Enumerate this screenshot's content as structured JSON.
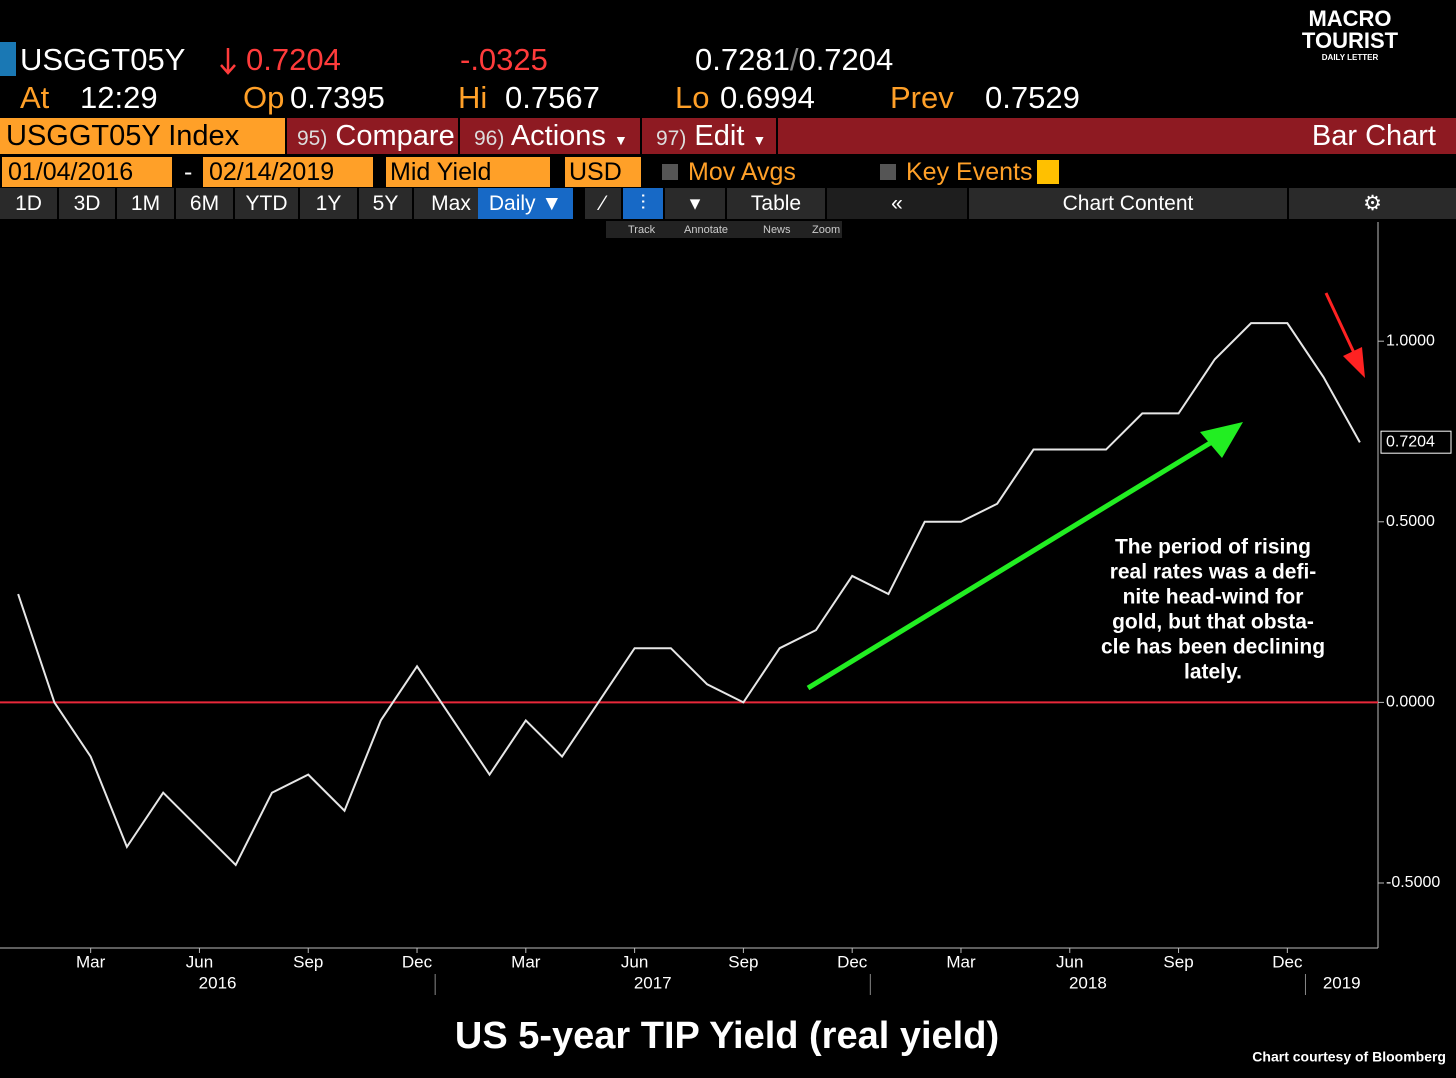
{
  "header": {
    "ticker": "USGGT05Y",
    "last": "0.7204",
    "change": "-.0325",
    "bid": "0.7281",
    "ask": "0.7204",
    "at_label": "At",
    "time": "12:29",
    "open_label": "Op",
    "open": "0.7395",
    "high_label": "Hi",
    "high": "0.7567",
    "low_label": "Lo",
    "low": "0.6994",
    "prev_label": "Prev",
    "prev": "0.7529"
  },
  "logo": {
    "line1": "MACRO",
    "line2": "TOURIST",
    "line3": "DAILY LETTER"
  },
  "toolbar": {
    "security": "USGGT05Y Index",
    "buttons": [
      {
        "number": "95)",
        "label": "Compare"
      },
      {
        "number": "96)",
        "label": "Actions"
      },
      {
        "number": "97)",
        "label": "Edit"
      }
    ],
    "chart_type": "Bar Chart"
  },
  "controls": {
    "start_date": "01/04/2016",
    "separator": "-",
    "end_date": "02/14/2019",
    "field": "Mid Yield",
    "currency": "USD",
    "mov_avgs": "Mov Avgs",
    "key_events": "Key Events"
  },
  "periods": [
    "1D",
    "3D",
    "1M",
    "6M",
    "YTD",
    "1Y",
    "5Y",
    "Max"
  ],
  "frequency": "Daily",
  "table": "Table",
  "chart_content": "Chart Content",
  "chart_tools": [
    "Track",
    "Annotate",
    "News",
    "Zoom"
  ],
  "chart_data": {
    "type": "line",
    "title": "US 5-year TIP Yield (real yield)",
    "credit": "Chart courtesy of Bloomberg",
    "annotation_lines": [
      "The period of rising",
      "real rates was a defi-",
      "nite head-wind for",
      "gold, but that obsta-",
      "cle has been declining",
      "lately."
    ],
    "x": [
      "2016-01",
      "2016-02",
      "2016-03",
      "2016-04",
      "2016-05",
      "2016-06",
      "2016-07",
      "2016-08",
      "2016-09",
      "2016-10",
      "2016-11",
      "2016-12",
      "2017-01",
      "2017-02",
      "2017-03",
      "2017-04",
      "2017-05",
      "2017-06",
      "2017-07",
      "2017-08",
      "2017-09",
      "2017-10",
      "2017-11",
      "2017-12",
      "2018-01",
      "2018-02",
      "2018-03",
      "2018-04",
      "2018-05",
      "2018-06",
      "2018-07",
      "2018-08",
      "2018-09",
      "2018-10",
      "2018-11",
      "2018-12",
      "2019-01",
      "2019-02"
    ],
    "values": [
      0.3,
      0.0,
      -0.15,
      -0.4,
      -0.25,
      -0.35,
      -0.45,
      -0.25,
      -0.2,
      -0.3,
      -0.05,
      0.1,
      -0.05,
      -0.2,
      -0.05,
      -0.15,
      0.0,
      0.15,
      0.15,
      0.05,
      0.0,
      0.15,
      0.2,
      0.35,
      0.3,
      0.5,
      0.5,
      0.55,
      0.7,
      0.7,
      0.7,
      0.8,
      0.8,
      0.95,
      1.05,
      1.05,
      0.9,
      0.72
    ],
    "color": "#e6e6e6",
    "last_price": 0.7204,
    "reference_line": 0,
    "reference_color": "#e8283a",
    "xlim": [
      "2016-01",
      "2019-03"
    ],
    "xticks": [
      {
        "value": "2016-03",
        "label": "Mar"
      },
      {
        "value": "2016-06",
        "label": "Jun"
      },
      {
        "value": "2016-09",
        "label": "Sep"
      },
      {
        "value": "2016-12",
        "label": "Dec"
      },
      {
        "value": "2017-03",
        "label": "Mar"
      },
      {
        "value": "2017-06",
        "label": "Jun"
      },
      {
        "value": "2017-09",
        "label": "Sep"
      },
      {
        "value": "2017-12",
        "label": "Dec"
      },
      {
        "value": "2018-03",
        "label": "Mar"
      },
      {
        "value": "2018-06",
        "label": "Jun"
      },
      {
        "value": "2018-09",
        "label": "Sep"
      },
      {
        "value": "2018-12",
        "label": "Dec"
      }
    ],
    "years": [
      2016,
      2017,
      2018,
      2019
    ],
    "ylim": [
      -0.68,
      1.33
    ],
    "yticks": [
      {
        "value": -0.5,
        "label": "-0.5000"
      },
      {
        "value": 0,
        "label": "0.0000"
      },
      {
        "value": 0.5,
        "label": "0.5000"
      },
      {
        "value": 1,
        "label": "1.0000"
      }
    ]
  }
}
